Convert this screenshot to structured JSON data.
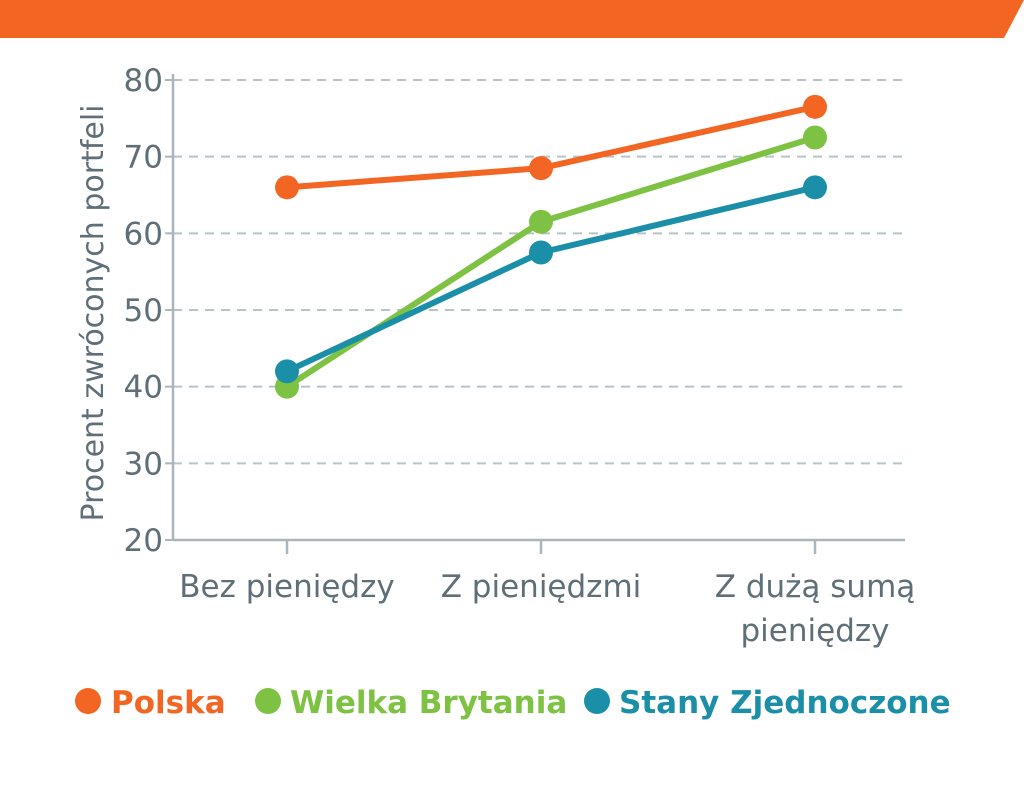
{
  "colors": {
    "banner": "#f26522",
    "axis": "#aab6bd",
    "grid": "#b7c3ca",
    "text": "#5f6f78"
  },
  "chart_data": {
    "type": "line",
    "ylabel": "Procent zwróconych portfeli",
    "xlabel": "",
    "ylim": [
      20,
      80
    ],
    "yticks": [
      20,
      30,
      40,
      50,
      60,
      70,
      80
    ],
    "grid": true,
    "legend_position": "bottom",
    "categories": [
      [
        "Bez pieniędzy"
      ],
      [
        "Z pieniędzmi"
      ],
      [
        "Z dużą sumą",
        "pieniędzy"
      ]
    ],
    "series": [
      {
        "name": "Polska",
        "color": "#f26522",
        "values": [
          66,
          68.5,
          76.5
        ]
      },
      {
        "name": "Wielka Brytania",
        "color": "#7dc242",
        "values": [
          40,
          61.5,
          72.5
        ]
      },
      {
        "name": "Stany Zjednoczone",
        "color": "#1b8fa8",
        "values": [
          42,
          57.5,
          66
        ]
      }
    ]
  }
}
